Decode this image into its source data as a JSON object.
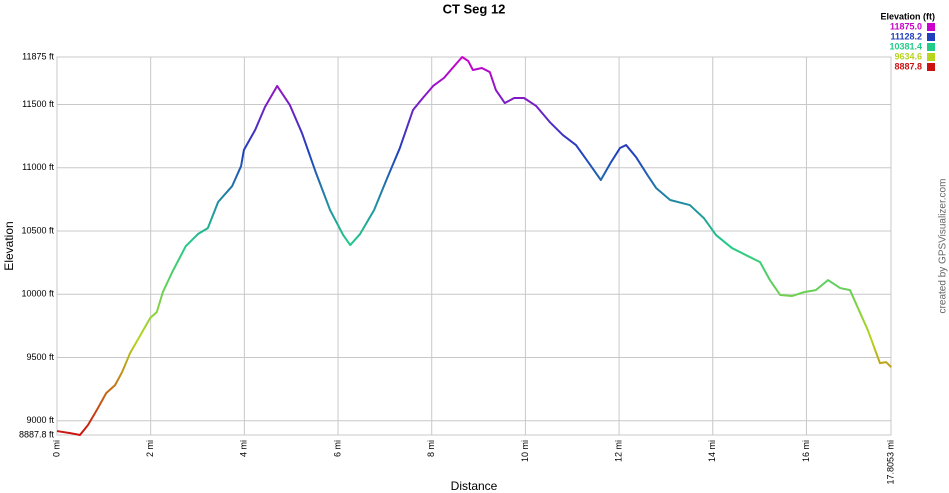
{
  "chart_data": {
    "type": "line",
    "title": "CT Seg 12",
    "xlabel": "Distance",
    "ylabel": "Elevation",
    "watermark": "created by GPSVisualizer.com",
    "x": [
      0,
      0.28,
      0.49,
      0.66,
      0.85,
      1.05,
      1.24,
      1.39,
      1.56,
      1.77,
      1.99,
      2.13,
      2.26,
      2.46,
      2.75,
      3.01,
      3.22,
      3.44,
      3.74,
      3.93,
      3.99,
      4.23,
      4.44,
      4.7,
      4.97,
      5.23,
      5.53,
      5.83,
      6.11,
      6.26,
      6.47,
      6.77,
      7.05,
      7.32,
      7.6,
      7.81,
      8.03,
      8.26,
      8.5,
      8.65,
      8.78,
      8.88,
      9.07,
      9.24,
      9.37,
      9.56,
      9.76,
      9.97,
      10.23,
      10.52,
      10.8,
      11.08,
      11.34,
      11.61,
      11.83,
      12.02,
      12.15,
      12.36,
      12.62,
      12.79,
      13.09,
      13.51,
      13.81,
      14.07,
      14.41,
      14.75,
      15.01,
      15.22,
      15.44,
      15.69,
      15.95,
      16.2,
      16.46,
      16.72,
      16.93,
      17.1,
      17.31,
      17.57,
      17.7,
      17.81
    ],
    "values": [
      8919,
      8903,
      8887.8,
      8966,
      9085,
      9219,
      9282,
      9385,
      9535,
      9670,
      9812,
      9859,
      10017,
      10175,
      10381,
      10476,
      10523,
      10729,
      10855,
      11013,
      11140,
      11298,
      11480,
      11646,
      11496,
      11274,
      10958,
      10666,
      10468,
      10389,
      10476,
      10666,
      10919,
      11156,
      11456,
      11551,
      11646,
      11709,
      11812,
      11875,
      11843,
      11772,
      11788,
      11756,
      11614,
      11511,
      11551,
      11551,
      11488,
      11361,
      11258,
      11179,
      11045,
      10903,
      11045,
      11156,
      11179,
      11085,
      10934,
      10840,
      10745,
      10705,
      10602,
      10468,
      10365,
      10302,
      10254,
      10112,
      9994,
      9986,
      10017,
      10033,
      10112,
      10049,
      10033,
      9891,
      9717,
      9456,
      9464,
      9424
    ],
    "xlim": [
      0,
      17.8053
    ],
    "xticks": [
      {
        "value": 0,
        "label": "0 mi"
      },
      {
        "value": 2,
        "label": "2 mi"
      },
      {
        "value": 4,
        "label": "4 mi"
      },
      {
        "value": 6,
        "label": "6 mi"
      },
      {
        "value": 8,
        "label": "8 mi"
      },
      {
        "value": 10,
        "label": "10 mi"
      },
      {
        "value": 12,
        "label": "12 mi"
      },
      {
        "value": 14,
        "label": "14 mi"
      },
      {
        "value": 16,
        "label": "16 mi"
      },
      {
        "value": 17.8053,
        "label": "17.8053 mi"
      }
    ],
    "ylim": [
      8887.8,
      11875
    ],
    "yticks": [
      {
        "value": 8887.8,
        "label": "8887.8 ft"
      },
      {
        "value": 9000,
        "label": "9000 ft"
      },
      {
        "value": 9500,
        "label": "9500 ft"
      },
      {
        "value": 10000,
        "label": "10000 ft"
      },
      {
        "value": 10500,
        "label": "10500 ft"
      },
      {
        "value": 11000,
        "label": "11000 ft"
      },
      {
        "value": 11500,
        "label": "11500 ft"
      },
      {
        "value": 11875,
        "label": "11875 ft"
      }
    ],
    "grid": true,
    "colorscale_title": "Elevation (ft)",
    "colorscale": [
      {
        "value": 11875,
        "label": "11875.0",
        "color": "#cc00cc"
      },
      {
        "value": 11128.2,
        "label": "11128.2",
        "color": "#1f3fbf"
      },
      {
        "value": 10381.4,
        "label": "10381.4",
        "color": "#22cc88"
      },
      {
        "value": 9634.6,
        "label": "9634.6",
        "color": "#b8d41c"
      },
      {
        "value": 8887.8,
        "label": "8887.8",
        "color": "#cc1111"
      }
    ]
  }
}
